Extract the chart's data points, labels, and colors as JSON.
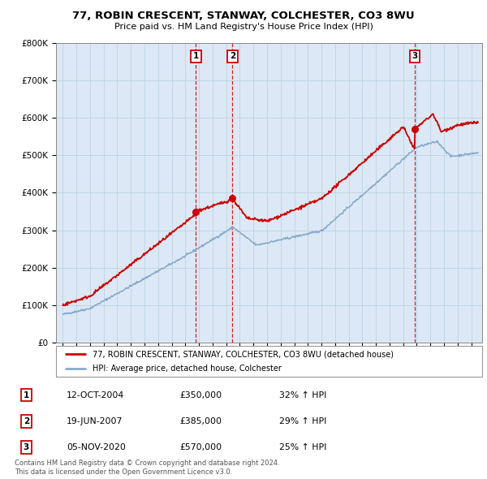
{
  "title": "77, ROBIN CRESCENT, STANWAY, COLCHESTER, CO3 8WU",
  "subtitle": "Price paid vs. HM Land Registry's House Price Index (HPI)",
  "legend_line1": "77, ROBIN CRESCENT, STANWAY, COLCHESTER, CO3 8WU (detached house)",
  "legend_line2": "HPI: Average price, detached house, Colchester",
  "footer1": "Contains HM Land Registry data © Crown copyright and database right 2024.",
  "footer2": "This data is licensed under the Open Government Licence v3.0.",
  "sales": [
    {
      "num": 1,
      "date": "12-OCT-2004",
      "price": 350000,
      "pct": "32%",
      "dir": "↑",
      "ref": "HPI",
      "year": 2004.78
    },
    {
      "num": 2,
      "date": "19-JUN-2007",
      "price": 385000,
      "pct": "29%",
      "dir": "↑",
      "ref": "HPI",
      "year": 2007.46
    },
    {
      "num": 3,
      "date": "05-NOV-2020",
      "price": 570000,
      "pct": "25%",
      "dir": "↑",
      "ref": "HPI",
      "year": 2020.84
    }
  ],
  "red_color": "#cc0000",
  "blue_color": "#88aacc",
  "plot_bg": "#dce8f5",
  "ylim": [
    0,
    800000
  ],
  "xlim_start": 1994.5,
  "xlim_end": 2025.8
}
